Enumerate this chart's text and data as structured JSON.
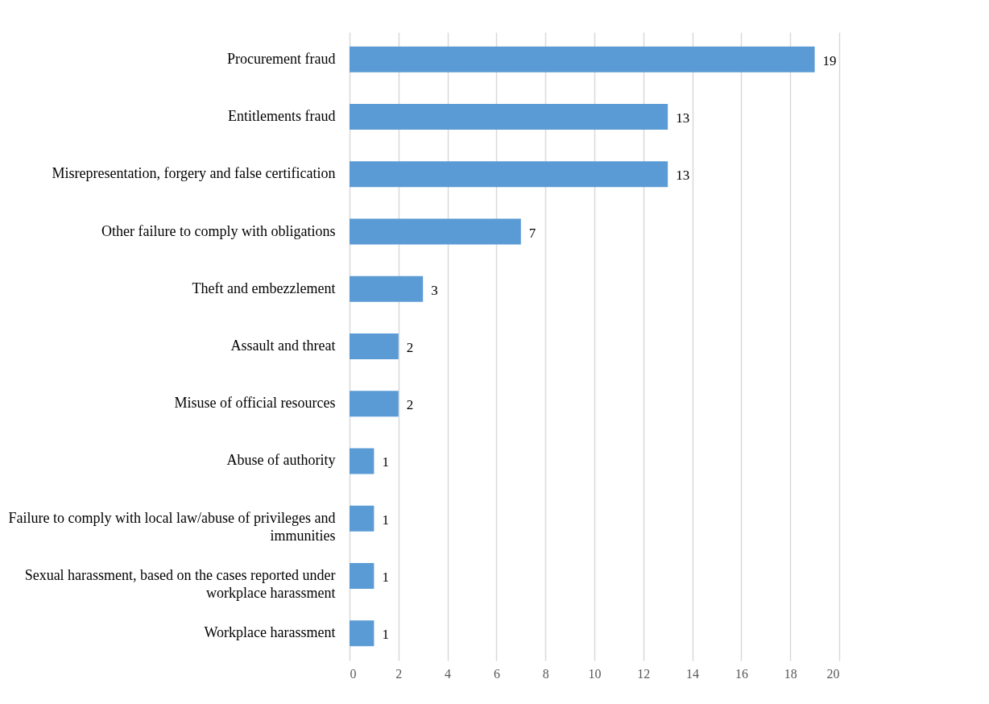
{
  "chart_data": {
    "type": "bar",
    "orientation": "horizontal",
    "categories": [
      "Procurement fraud",
      "Entitlements fraud",
      "Misrepresentation, forgery and false certification",
      "Other failure to comply with obligations",
      "Theft and embezzlement",
      "Assault and threat",
      "Misuse of official resources",
      "Abuse of authority",
      "Failure to comply with local law/abuse of privileges and immunities",
      "Sexual harassment, based on the cases reported under workplace harassment",
      "Workplace harassment"
    ],
    "values": [
      19,
      13,
      13,
      7,
      3,
      2,
      2,
      1,
      1,
      1,
      1
    ],
    "color": "#5b9bd5",
    "xlim": [
      0,
      20
    ],
    "xticks": [
      0,
      2,
      4,
      6,
      8,
      10,
      12,
      14,
      16,
      18,
      20
    ],
    "grid": "x",
    "data_labels": true
  }
}
